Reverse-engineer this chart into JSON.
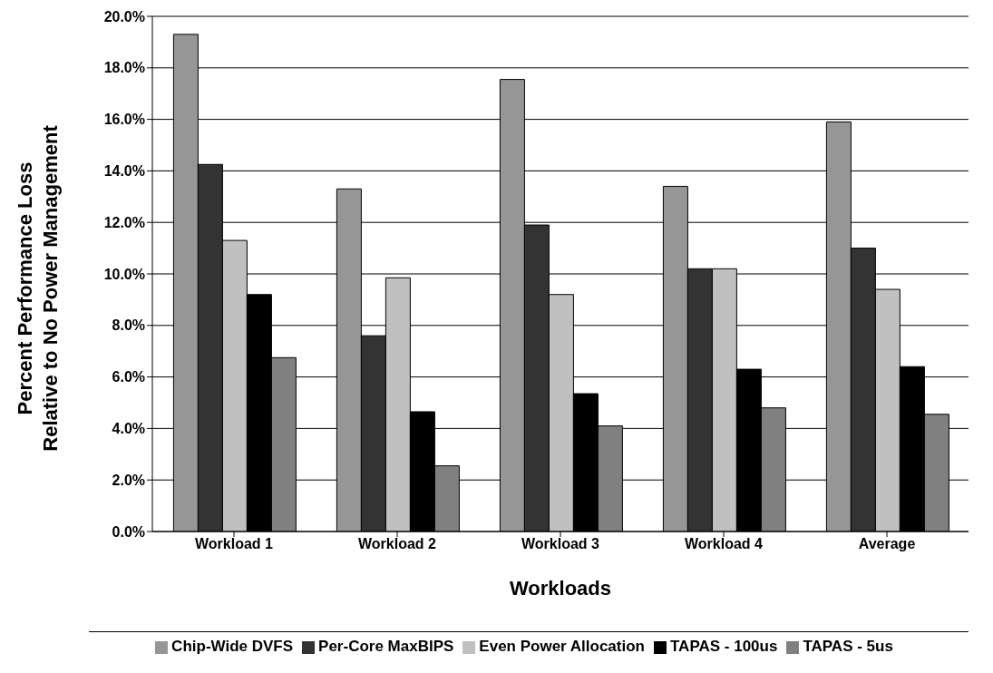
{
  "chart_data": {
    "type": "bar",
    "xlabel": "Workloads",
    "ylabel": "Percent Performance Loss\nRelative to No Power Management",
    "categories": [
      "Workload 1",
      "Workload 2",
      "Workload 3",
      "Workload 4",
      "Average"
    ],
    "series": [
      {
        "name": "Chip-Wide DVFS",
        "color": "#969696",
        "values": [
          19.3,
          13.3,
          17.55,
          13.4,
          15.9
        ]
      },
      {
        "name": "Per-Core MaxBIPS",
        "color": "#333333",
        "values": [
          14.25,
          7.6,
          11.9,
          10.2,
          11.0
        ]
      },
      {
        "name": "Even Power Allocation",
        "color": "#c0c0c0",
        "values": [
          11.3,
          9.85,
          9.2,
          10.2,
          9.4
        ]
      },
      {
        "name": "TAPAS - 100us",
        "color": "#000000",
        "values": [
          9.2,
          4.65,
          5.35,
          6.3,
          6.4
        ]
      },
      {
        "name": "TAPAS - 5us",
        "color": "#808080",
        "values": [
          6.75,
          2.55,
          4.1,
          4.8,
          4.55
        ]
      }
    ],
    "ylim": [
      0,
      20
    ],
    "yticks": [
      {
        "value": 0,
        "label": "0.0%"
      },
      {
        "value": 2,
        "label": "2.0%"
      },
      {
        "value": 4,
        "label": "4.0%"
      },
      {
        "value": 6,
        "label": "6.0%"
      },
      {
        "value": 8,
        "label": "8.0%"
      },
      {
        "value": 10,
        "label": "10.0%"
      },
      {
        "value": 12,
        "label": "12.0%"
      },
      {
        "value": 14,
        "label": "14.0%"
      },
      {
        "value": 16,
        "label": "16.0%"
      },
      {
        "value": 18,
        "label": "18.0%"
      },
      {
        "value": 20,
        "label": "20.0%"
      }
    ],
    "grid": "y",
    "legend": "bottom"
  }
}
